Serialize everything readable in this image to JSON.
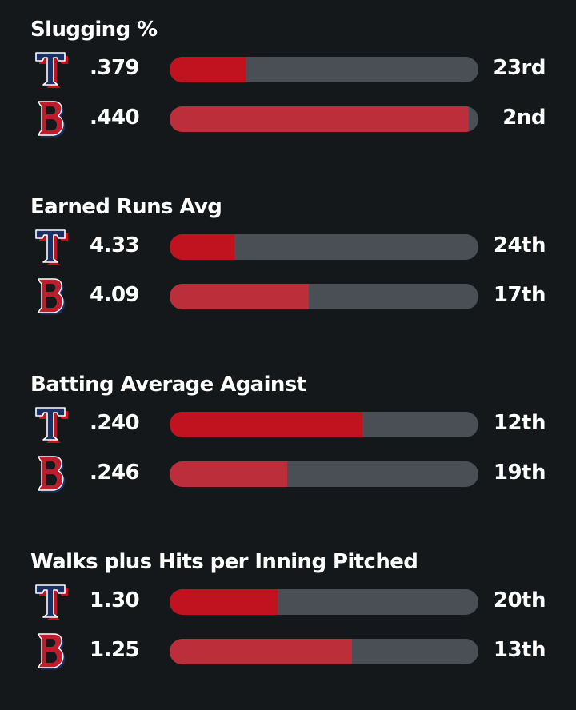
{
  "colors": {
    "background": "#15181b",
    "track": "#4a4f55",
    "rangers_bar": "#c0121f",
    "redsox_bar": "#bd2e3b"
  },
  "teams": [
    {
      "key": "rangers",
      "icon": "rangers-t-logo-icon",
      "logo_letter": "T"
    },
    {
      "key": "redsox",
      "icon": "red-sox-b-logo-icon",
      "logo_letter": "B"
    }
  ],
  "chart_data": {
    "type": "bar",
    "total_teams": 30,
    "groups": [
      {
        "title": "Slugging %",
        "rows": [
          {
            "team": "rangers",
            "value": ".379",
            "rank": "23rd",
            "fill": 0.245
          },
          {
            "team": "redsox",
            "value": ".440",
            "rank": "2nd",
            "fill": 0.97
          }
        ]
      },
      {
        "title": "Earned Runs Avg",
        "rows": [
          {
            "team": "rangers",
            "value": "4.33",
            "rank": "24th",
            "fill": 0.21
          },
          {
            "team": "redsox",
            "value": "4.09",
            "rank": "17th",
            "fill": 0.45
          }
        ]
      },
      {
        "title": "Batting Average Against",
        "rows": [
          {
            "team": "rangers",
            "value": ".240",
            "rank": "12th",
            "fill": 0.625
          },
          {
            "team": "redsox",
            "value": ".246",
            "rank": "19th",
            "fill": 0.38
          }
        ]
      },
      {
        "title": "Walks plus Hits per Inning Pitched",
        "rows": [
          {
            "team": "rangers",
            "value": "1.30",
            "rank": "20th",
            "fill": 0.35
          },
          {
            "team": "redsox",
            "value": "1.25",
            "rank": "13th",
            "fill": 0.59
          }
        ]
      }
    ]
  }
}
